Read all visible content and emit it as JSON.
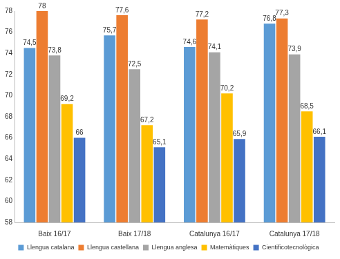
{
  "chart_data": {
    "type": "bar",
    "categories": [
      "Baix 16/17",
      "Baix 17/18",
      "Catalunya 16/17",
      "Catalunya 17/18"
    ],
    "series": [
      {
        "name": "Llengua catalana",
        "color": "#5b9bd5",
        "values": [
          74.5,
          75.7,
          74.6,
          76.8
        ],
        "value_labels": [
          "74,5",
          "75,7",
          "74,6",
          "76,8"
        ]
      },
      {
        "name": "Llengua castellana",
        "color": "#ed7d31",
        "values": [
          78,
          77.6,
          77.2,
          77.3
        ],
        "value_labels": [
          "78",
          "77,6",
          "77,2",
          "77,3"
        ]
      },
      {
        "name": "Llengua anglesa",
        "color": "#a5a5a5",
        "values": [
          73.8,
          72.5,
          74.1,
          73.9
        ],
        "value_labels": [
          "73,8",
          "72,5",
          "74,1",
          "73,9"
        ]
      },
      {
        "name": "Matemàtiques",
        "color": "#ffc000",
        "values": [
          69.2,
          67.2,
          70.2,
          68.5
        ],
        "value_labels": [
          "69,2",
          "67,2",
          "70,2",
          "68,5"
        ]
      },
      {
        "name": "Cientificotecnològica",
        "color": "#4472c4",
        "values": [
          66,
          65.1,
          65.9,
          66.1
        ],
        "value_labels": [
          "66",
          "65,1",
          "65,9",
          "66,1"
        ]
      }
    ],
    "ylim": [
      58,
      78
    ],
    "yticks": [
      58,
      60,
      62,
      64,
      66,
      68,
      70,
      72,
      74,
      76,
      78
    ],
    "grid": false,
    "legend": "bottom",
    "data_labels": true
  }
}
